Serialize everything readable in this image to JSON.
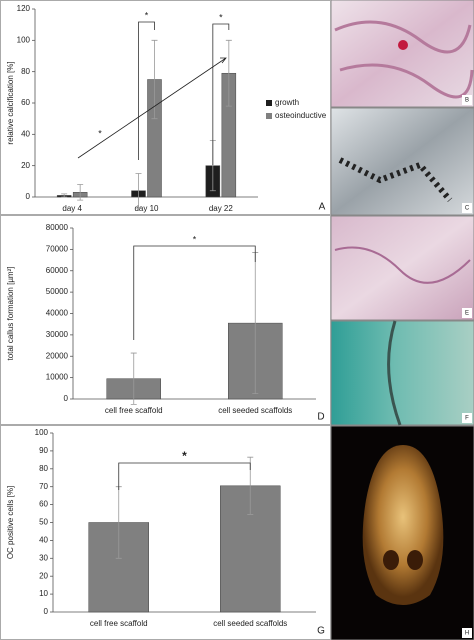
{
  "chart_data": [
    {
      "type": "bar",
      "panel_label": "A",
      "y_label": "relative calcification [%]",
      "categories": [
        "day 4",
        "day 10",
        "day 22"
      ],
      "series": [
        {
          "name": "growth",
          "color": "#1e1e1e",
          "values": [
            1,
            4,
            20
          ],
          "errors": [
            1,
            11,
            16
          ]
        },
        {
          "name": "osteoinductive",
          "color": "#808080",
          "values": [
            3,
            75,
            79
          ],
          "errors": [
            5,
            25,
            21
          ]
        }
      ],
      "ylim": [
        0,
        120
      ],
      "yticks": [
        0,
        20,
        40,
        60,
        80,
        100,
        120
      ],
      "legend": true,
      "annotations": [
        "*",
        "*",
        "*"
      ]
    },
    {
      "type": "bar",
      "panel_label": "D",
      "y_label": "total callus formation [µm²]",
      "categories": [
        "cell free scaffold",
        "cell seeded scaffolds"
      ],
      "series": [
        {
          "color": "#808080",
          "values": [
            9500,
            35500
          ],
          "errors": [
            12000,
            33000
          ]
        }
      ],
      "ylim": [
        0,
        80000
      ],
      "yticks": [
        0,
        10000,
        20000,
        30000,
        40000,
        50000,
        60000,
        70000,
        80000
      ],
      "legend": false,
      "annotations": [
        "*"
      ]
    },
    {
      "type": "bar",
      "panel_label": "G",
      "y_label": "OC positive cells [%]",
      "categories": [
        "cell free scaffold",
        "cell seeded scaffolds"
      ],
      "series": [
        {
          "color": "#808080",
          "values": [
            50,
            70.5
          ],
          "errors": [
            20,
            16
          ]
        }
      ],
      "ylim": [
        0,
        100
      ],
      "yticks": [
        0,
        10,
        20,
        30,
        40,
        50,
        60,
        70,
        80,
        90,
        100
      ],
      "legend": false,
      "annotations": [
        "*"
      ]
    }
  ],
  "images": [
    {
      "label": "B"
    },
    {
      "label": "C"
    },
    {
      "label": "E"
    },
    {
      "label": "F"
    },
    {
      "label": "H"
    }
  ]
}
